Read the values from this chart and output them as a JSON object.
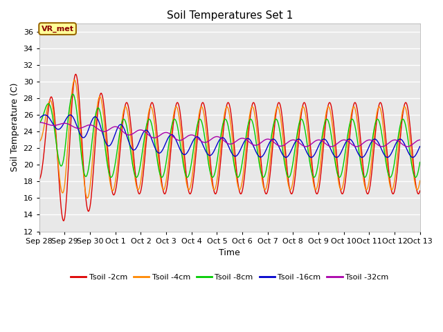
{
  "title": "Soil Temperatures Set 1",
  "xlabel": "Time",
  "ylabel": "Soil Temperature (C)",
  "ylim": [
    12,
    37
  ],
  "yticks": [
    12,
    14,
    16,
    18,
    20,
    22,
    24,
    26,
    28,
    30,
    32,
    34,
    36
  ],
  "background_color": "#e8e8e8",
  "annotation_text": "VR_met",
  "annotation_bg": "#ffff99",
  "annotation_border": "#996600",
  "line_colors": {
    "2cm": "#dd0000",
    "4cm": "#ff8800",
    "8cm": "#00cc00",
    "16cm": "#0000cc",
    "32cm": "#aa00aa"
  },
  "xtick_labels": [
    "Sep 28",
    "Sep 29",
    "Sep 30",
    "Oct 1",
    "Oct 2",
    "Oct 3",
    "Oct 4",
    "Oct 5",
    "Oct 6",
    "Oct 7",
    "Oct 8",
    "Oct 9",
    "Oct 10",
    "Oct 11",
    "Oct 12",
    "Oct 13"
  ],
  "num_days": 15,
  "ppd": 48,
  "base_2cm": [
    21.5,
    22.5,
    22.0,
    22.0,
    22.0,
    22.0,
    22.0,
    22.0,
    22.0,
    22.0,
    22.0,
    22.0,
    22.0,
    22.0,
    22.0,
    22.0
  ],
  "amp_2cm": [
    3.5,
    9.5,
    7.5,
    5.5,
    5.5,
    5.5,
    5.5,
    5.5,
    5.5,
    5.5,
    5.5,
    5.5,
    5.5,
    5.5,
    5.5,
    5.5
  ],
  "base_4cm": [
    24.0,
    23.5,
    22.5,
    22.0,
    22.0,
    22.0,
    22.0,
    22.0,
    22.0,
    22.0,
    22.0,
    22.0,
    22.0,
    22.0,
    22.0,
    22.0
  ],
  "amp_4cm": [
    1.5,
    7.5,
    6.5,
    5.0,
    5.0,
    5.0,
    5.0,
    5.0,
    5.0,
    5.0,
    5.0,
    5.0,
    5.0,
    5.0,
    5.0,
    5.0
  ],
  "base_8cm": [
    25.5,
    24.0,
    23.0,
    22.0,
    22.0,
    22.0,
    22.0,
    22.0,
    22.0,
    22.0,
    22.0,
    22.0,
    22.0,
    22.0,
    22.0,
    22.0
  ],
  "amp_8cm": [
    1.0,
    5.0,
    4.5,
    3.5,
    3.5,
    3.5,
    3.5,
    3.5,
    3.5,
    3.5,
    3.5,
    3.5,
    3.5,
    3.5,
    3.5,
    3.5
  ],
  "base_16cm": [
    25.5,
    25.0,
    24.5,
    23.5,
    23.0,
    22.5,
    22.3,
    22.2,
    22.1,
    22.0,
    22.0,
    22.0,
    22.0,
    22.0,
    22.0,
    22.0
  ],
  "amp_16cm": [
    0.5,
    1.0,
    1.5,
    1.5,
    1.3,
    1.2,
    1.1,
    1.1,
    1.1,
    1.1,
    1.1,
    1.1,
    1.1,
    1.1,
    1.1,
    1.1
  ],
  "base_32cm": [
    25.0,
    24.8,
    24.5,
    24.2,
    23.8,
    23.5,
    23.2,
    23.0,
    22.8,
    22.7,
    22.6,
    22.6,
    22.6,
    22.6,
    22.6,
    22.6
  ],
  "amp_32cm": [
    0.1,
    0.2,
    0.3,
    0.4,
    0.4,
    0.4,
    0.4,
    0.4,
    0.4,
    0.4,
    0.4,
    0.4,
    0.4,
    0.4,
    0.4,
    0.4
  ],
  "phase_2cm": -1.2,
  "phase_4cm": -0.9,
  "phase_8cm": -0.5,
  "phase_16cm": 0.2,
  "phase_32cm": 1.5
}
